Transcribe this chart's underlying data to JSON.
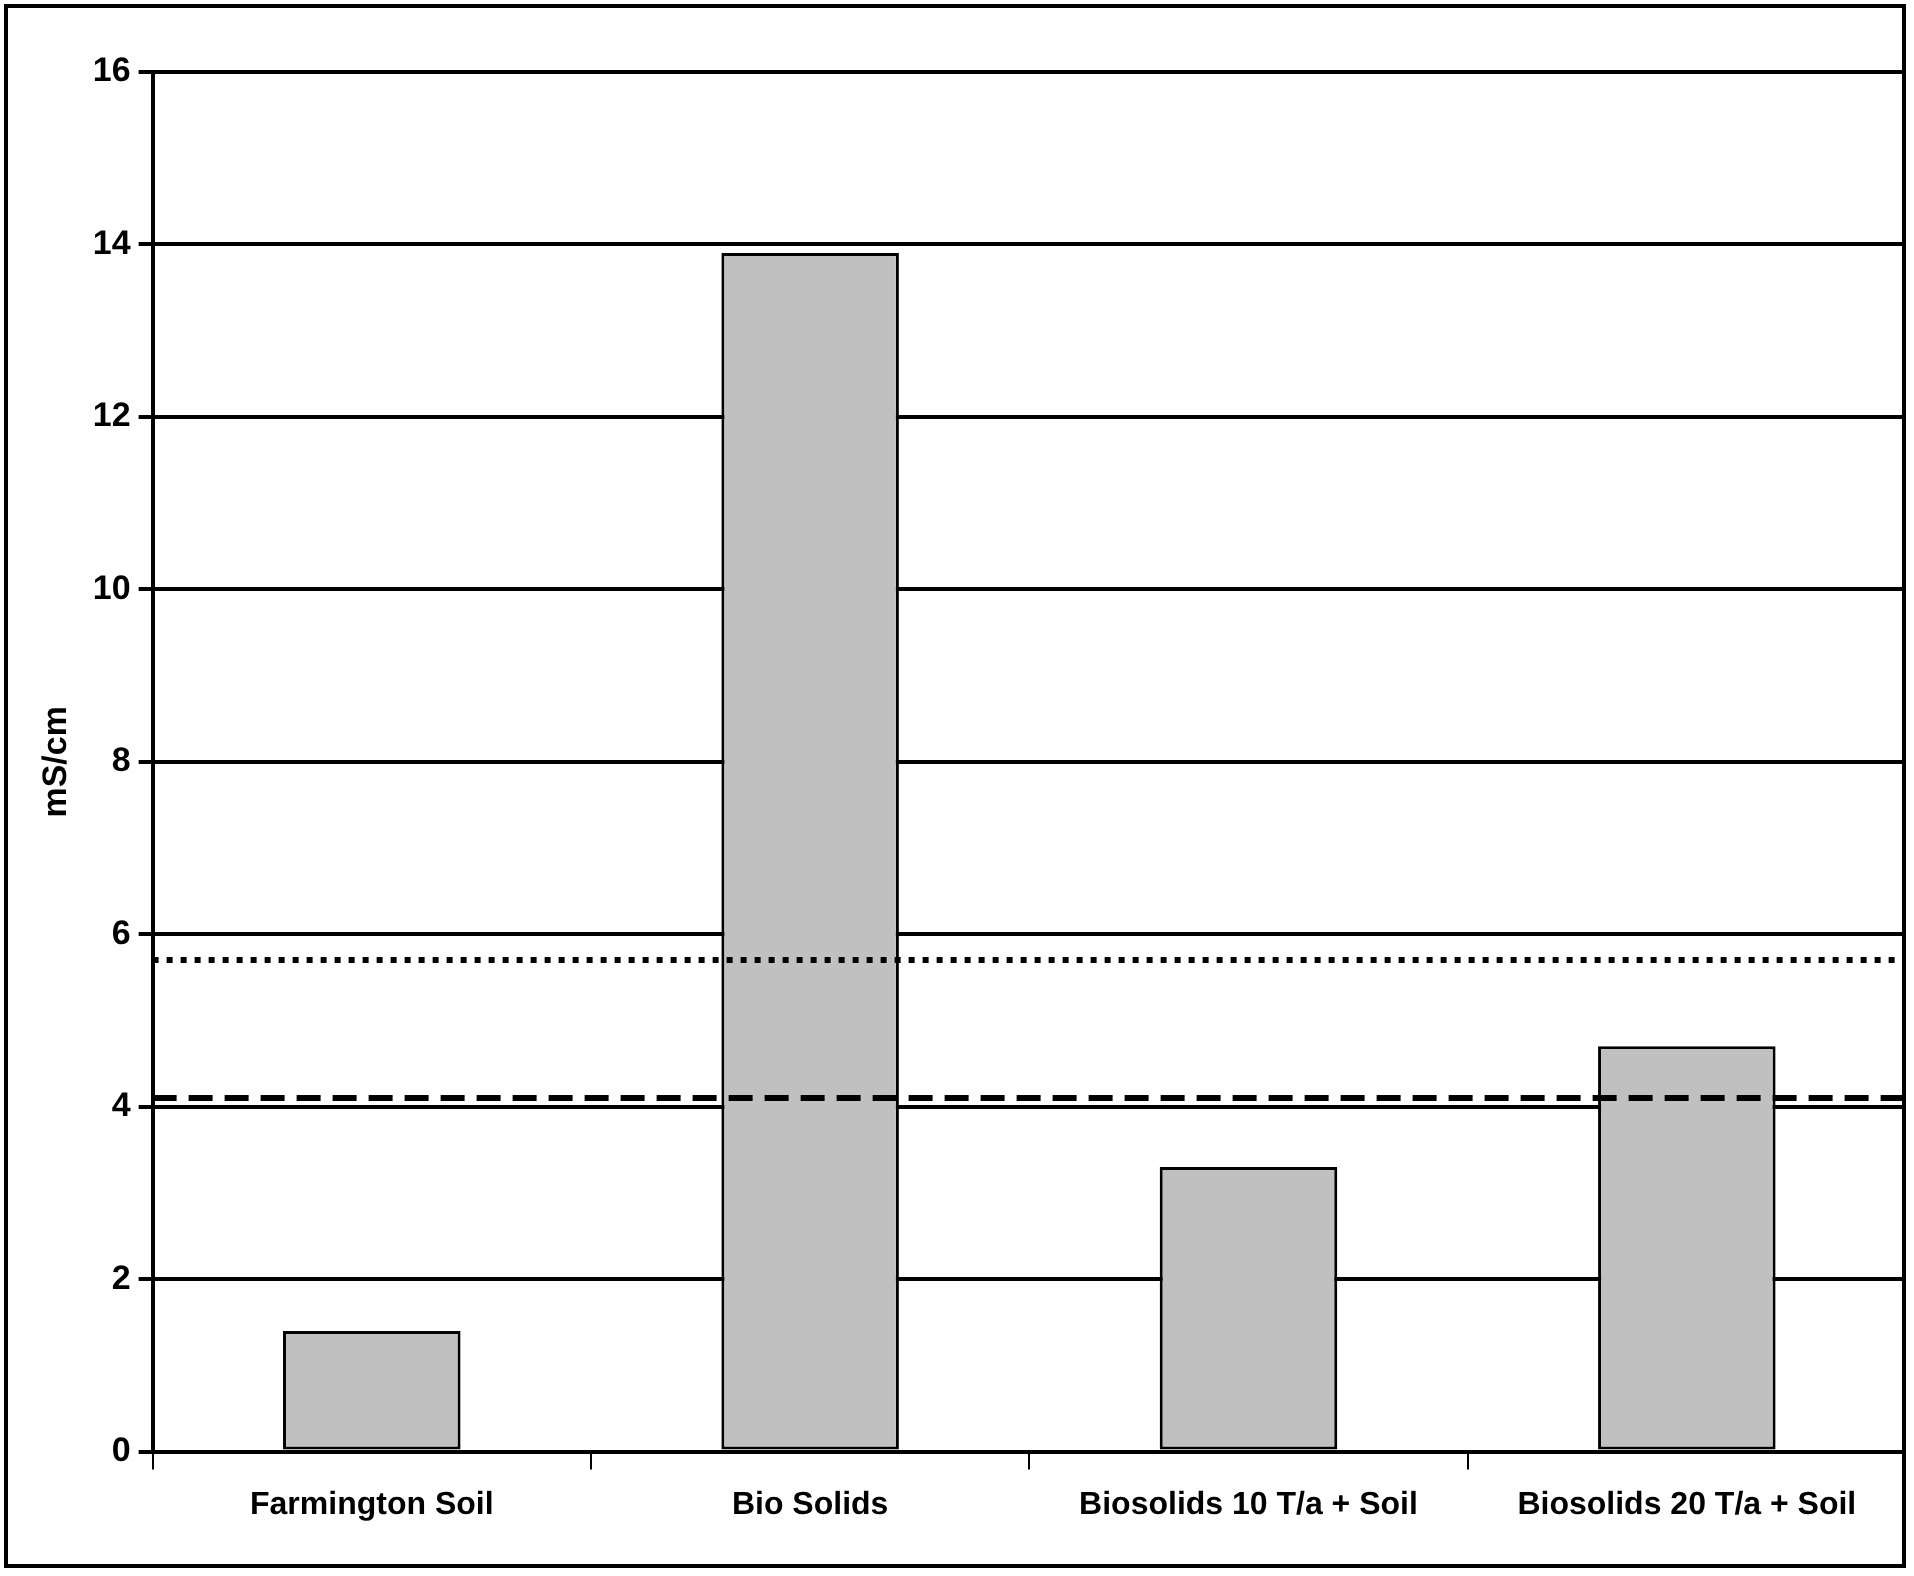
{
  "chart_data": {
    "type": "bar",
    "ylabel": "mS/cm",
    "categories": [
      "Farmington Soil",
      "Bio Solids",
      "Biosolids 10 T/a + Soil",
      "Biosolids 20 T/a + Soil"
    ],
    "values": [
      1.4,
      13.9,
      3.3,
      4.7
    ],
    "color": "#c0c0c0",
    "ylim": [
      0,
      16
    ],
    "yticks": [
      0,
      2,
      4,
      6,
      8,
      10,
      12,
      14,
      16
    ],
    "grid": "y",
    "ref_lines": [
      {
        "axis": "y",
        "value": 5.7,
        "line_style": "dotted",
        "color": "#000000"
      },
      {
        "axis": "y",
        "value": 4.1,
        "line_style": "dashed",
        "color": "#000000"
      }
    ]
  }
}
